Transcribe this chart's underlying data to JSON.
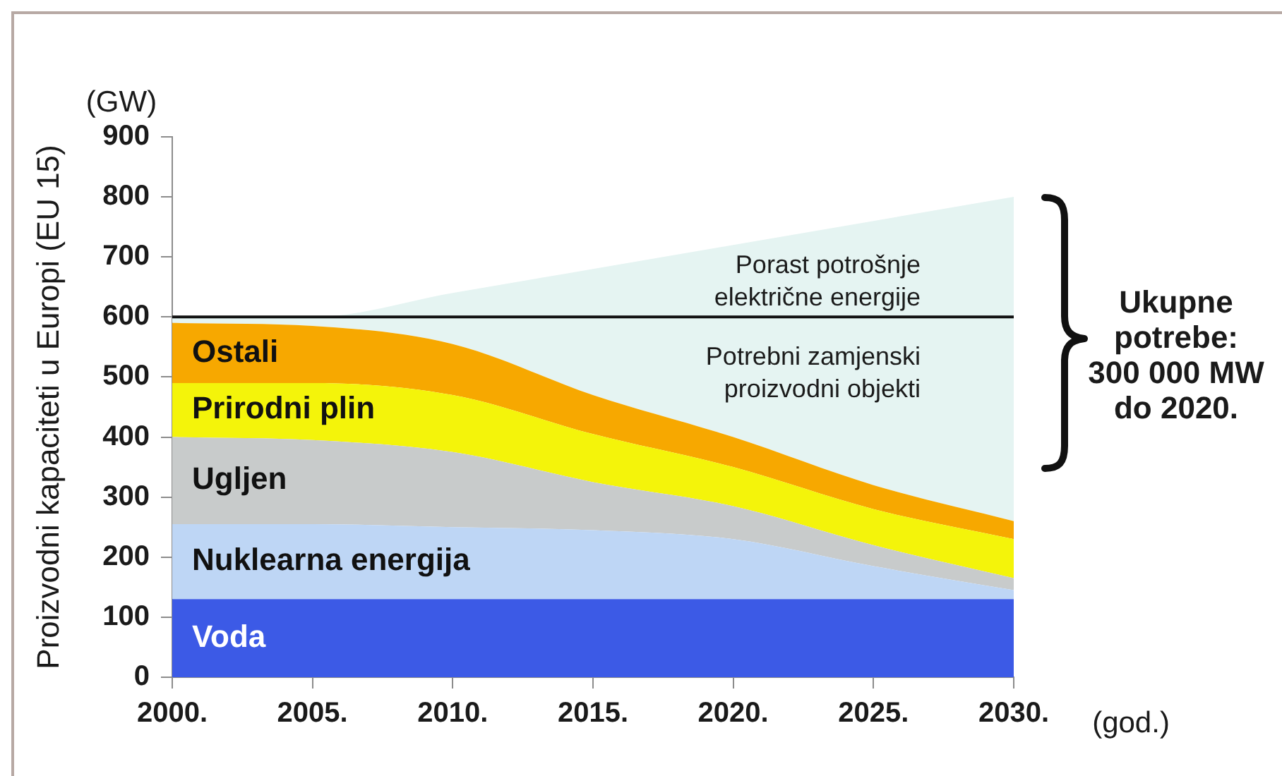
{
  "chart_data": {
    "type": "area",
    "stacked": true,
    "ylabel": "Proizvodni kapaciteti u Europi (EU 15)",
    "xlabel": "(god.)",
    "x": [
      2000,
      2005,
      2010,
      2015,
      2020,
      2025,
      2030
    ],
    "xlim": [
      2000,
      2030
    ],
    "xticks": [
      {
        "value": 2000,
        "label": "2000."
      },
      {
        "value": 2005,
        "label": "2005."
      },
      {
        "value": 2010,
        "label": "2010."
      },
      {
        "value": 2015,
        "label": "2015."
      },
      {
        "value": 2020,
        "label": "2020."
      },
      {
        "value": 2025,
        "label": "2025."
      },
      {
        "value": 2030,
        "label": "2030."
      }
    ],
    "ylim": [
      0,
      900
    ],
    "yticks": [
      0,
      100,
      200,
      300,
      400,
      500,
      600,
      700,
      800,
      900
    ],
    "series": [
      {
        "name": "Voda",
        "color": "#3c5ae6",
        "values": [
          130,
          130,
          130,
          130,
          130,
          130,
          130
        ]
      },
      {
        "name": "Nuklearna energija",
        "color": "#bed6f5",
        "values": [
          125,
          125,
          120,
          115,
          100,
          55,
          15
        ]
      },
      {
        "name": "Ugljen",
        "color": "#c8cbcb",
        "values": [
          145,
          140,
          125,
          80,
          55,
          35,
          20
        ]
      },
      {
        "name": "Prirodni plin",
        "color": "#f4f40a",
        "values": [
          90,
          95,
          95,
          80,
          65,
          60,
          65
        ]
      },
      {
        "name": "Ostali",
        "color": "#f7a800",
        "values": [
          100,
          95,
          85,
          65,
          50,
          40,
          30
        ]
      },
      {
        "color": "#e5f4f2",
        "values": [
          10,
          15,
          85,
          210,
          320,
          440,
          540
        ]
      }
    ],
    "ref_lines": [
      {
        "axis": "y",
        "value": 600,
        "color": "#111111"
      }
    ],
    "annotations": [
      "(GW)",
      "Porast potrošnje\nelektrične energije",
      "Potrebni zamjenski\nproizvodni objekti",
      "Ukupne\npotrebe:\n300 000 MW\ndo 2020."
    ]
  }
}
